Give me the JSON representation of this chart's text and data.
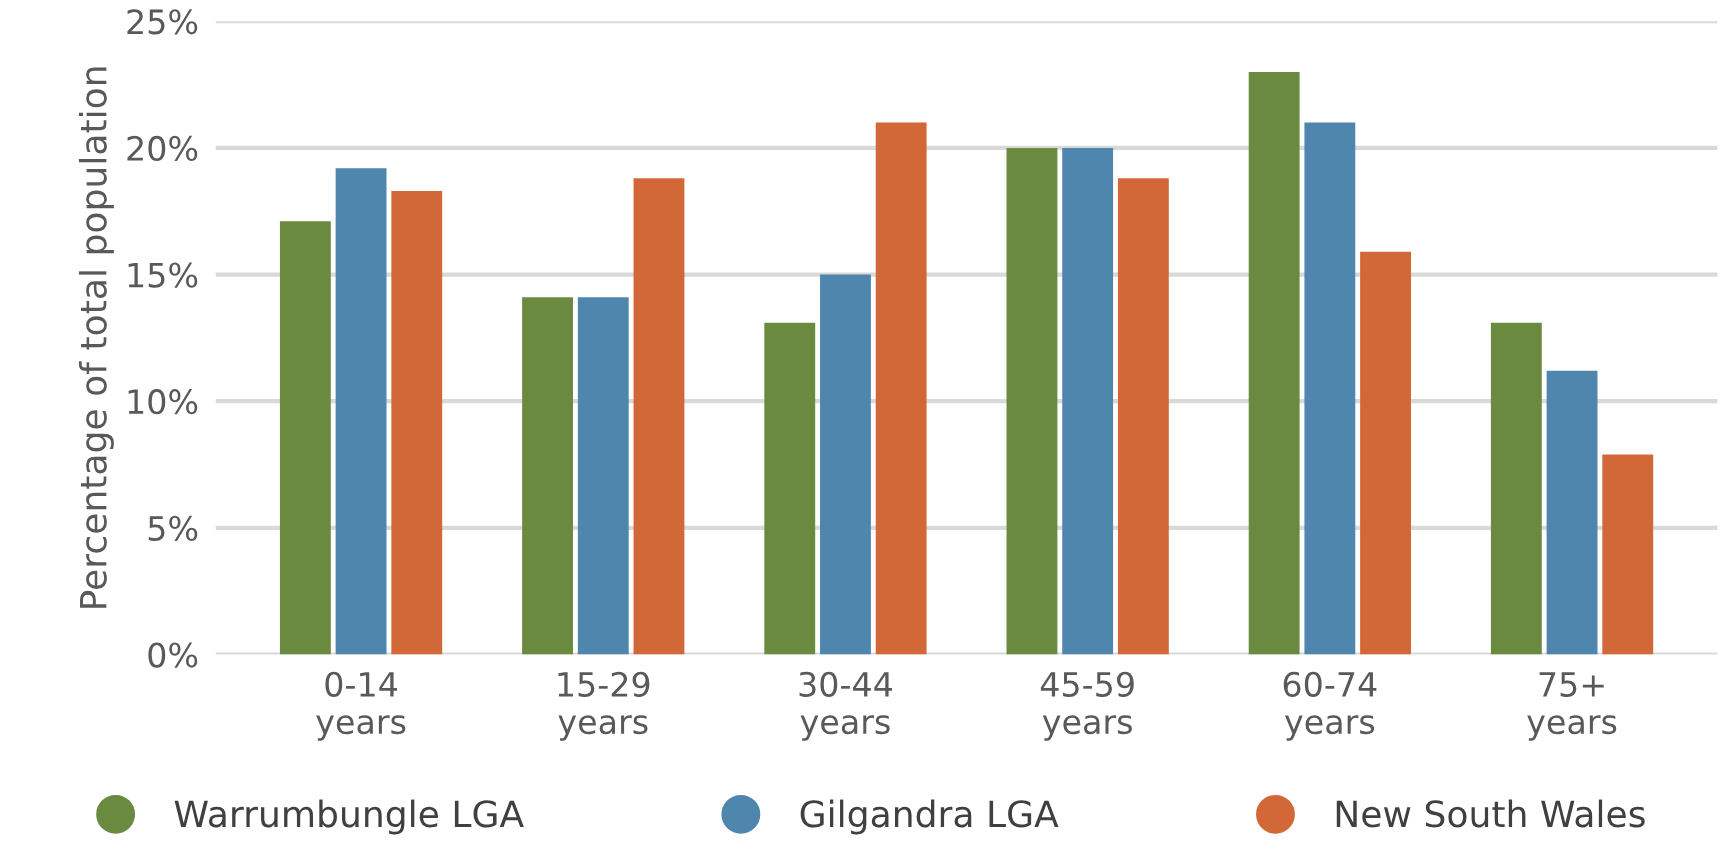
{
  "chart_data": {
    "type": "bar",
    "ylabel": "Percentage of total population",
    "categories": [
      "0-14\nyears",
      "15-29\nyears",
      "30-44\nyears",
      "45-59\nyears",
      "60-74\nyears",
      "75+\nyears"
    ],
    "series": [
      {
        "name": "Warrumbungle LGA",
        "color": "#6a8a3f",
        "values": [
          17.1,
          14.1,
          13.1,
          20.0,
          23.0,
          13.1
        ]
      },
      {
        "name": "Gilgandra LGA",
        "color": "#4f86ad",
        "values": [
          19.2,
          14.1,
          15.0,
          20.0,
          21.0,
          11.2
        ]
      },
      {
        "name": "New South Wales",
        "color": "#d26838",
        "values": [
          18.3,
          18.8,
          21.0,
          18.8,
          15.9,
          7.9
        ]
      }
    ],
    "ylim": [
      0,
      25
    ],
    "yticks": [
      {
        "value": 0,
        "label": "0%"
      },
      {
        "value": 5,
        "label": "5%"
      },
      {
        "value": 10,
        "label": "10%"
      },
      {
        "value": 15,
        "label": "15%"
      },
      {
        "value": 20,
        "label": "20%"
      },
      {
        "value": 25,
        "label": "25%"
      }
    ],
    "grid": "y",
    "legend": "bottom"
  }
}
